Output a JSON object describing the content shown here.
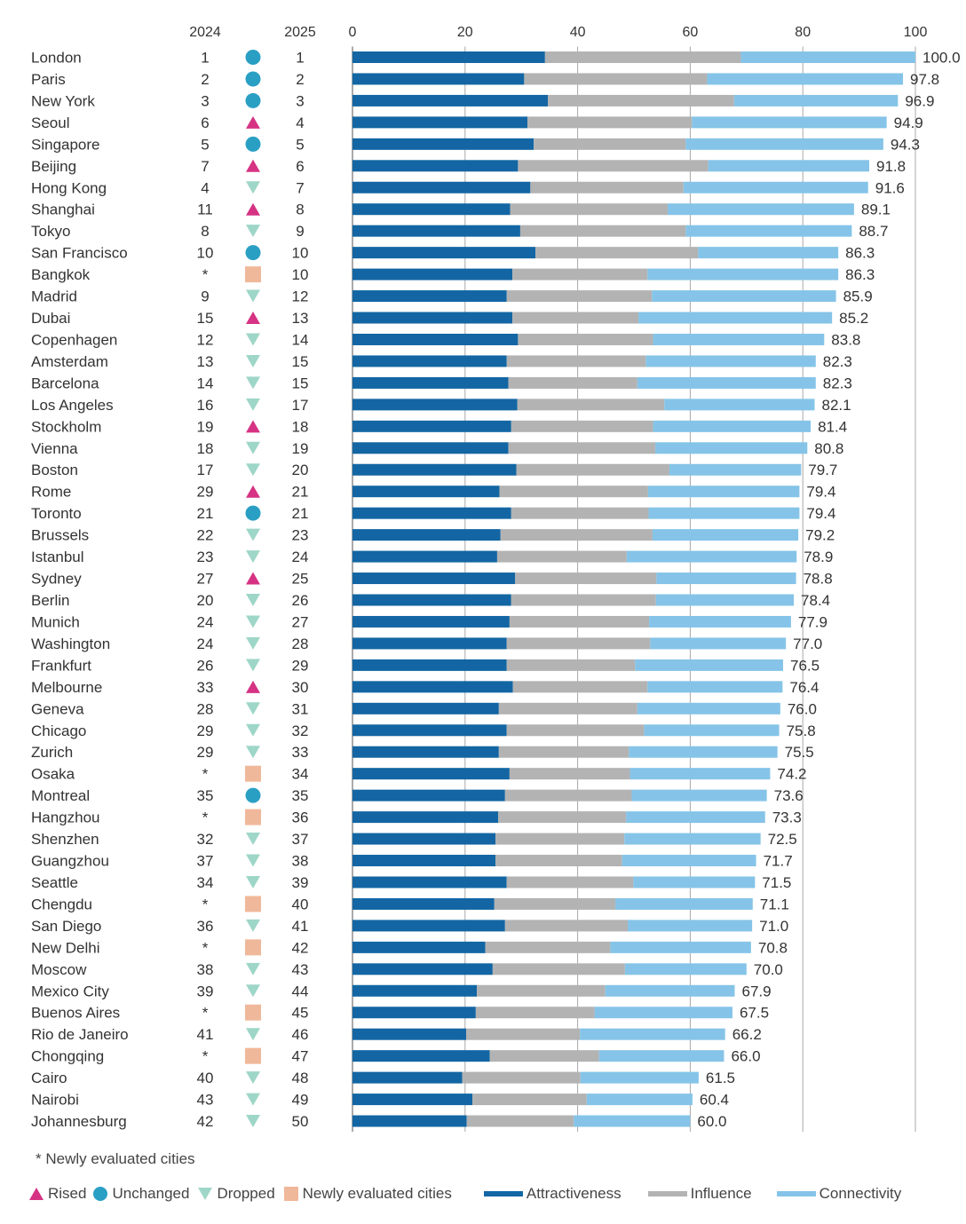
{
  "chart_data": {
    "type": "bar",
    "orientation": "horizontal",
    "stacked": true,
    "column_headers": {
      "rank_2024": "2024",
      "rank_2025": "2025"
    },
    "xlim": [
      0,
      100
    ],
    "xticks": [
      "0",
      "20",
      "40",
      "60",
      "80",
      "100"
    ],
    "grid": true,
    "colors": {
      "attractiveness": "#1366a3",
      "influence": "#b3b3b3",
      "connectivity": "#85c4e8",
      "rised": "#d63384",
      "unchanged": "#2a9fc4",
      "dropped": "#9ed6c7",
      "new": "#f0b89a"
    },
    "series": [
      {
        "key": "attractiveness",
        "name": "Attractiveness"
      },
      {
        "key": "influence",
        "name": "Influence"
      },
      {
        "key": "connectivity",
        "name": "Connectivity"
      }
    ],
    "rows": [
      {
        "city": "London",
        "r2024": "1",
        "status": "unchanged",
        "r2025": "1",
        "attractiveness": 34.2,
        "influence": 34.8,
        "connectivity": 31.0,
        "total": "100.0"
      },
      {
        "city": "Paris",
        "r2024": "2",
        "status": "unchanged",
        "r2025": "2",
        "attractiveness": 30.5,
        "influence": 32.5,
        "connectivity": 34.8,
        "total": "97.8"
      },
      {
        "city": "New York",
        "r2024": "3",
        "status": "unchanged",
        "r2025": "3",
        "attractiveness": 34.7,
        "influence": 33.1,
        "connectivity": 29.1,
        "total": "96.9"
      },
      {
        "city": "Seoul",
        "r2024": "6",
        "status": "rised",
        "r2025": "4",
        "attractiveness": 31.1,
        "influence": 29.2,
        "connectivity": 34.6,
        "total": "94.9"
      },
      {
        "city": "Singapore",
        "r2024": "5",
        "status": "unchanged",
        "r2025": "5",
        "attractiveness": 32.2,
        "influence": 27.0,
        "connectivity": 35.1,
        "total": "94.3"
      },
      {
        "city": "Beijing",
        "r2024": "7",
        "status": "rised",
        "r2025": "6",
        "attractiveness": 29.4,
        "influence": 33.8,
        "connectivity": 28.6,
        "total": "91.8"
      },
      {
        "city": "Hong Kong",
        "r2024": "4",
        "status": "dropped",
        "r2025": "7",
        "attractiveness": 31.6,
        "influence": 27.2,
        "connectivity": 32.8,
        "total": "91.6"
      },
      {
        "city": "Shanghai",
        "r2024": "11",
        "status": "rised",
        "r2025": "8",
        "attractiveness": 28.0,
        "influence": 28.0,
        "connectivity": 33.1,
        "total": "89.1"
      },
      {
        "city": "Tokyo",
        "r2024": "8",
        "status": "dropped",
        "r2025": "9",
        "attractiveness": 29.8,
        "influence": 29.4,
        "connectivity": 29.5,
        "total": "88.7"
      },
      {
        "city": "San Francisco",
        "r2024": "10",
        "status": "unchanged",
        "r2025": "10",
        "attractiveness": 32.5,
        "influence": 28.9,
        "connectivity": 24.9,
        "total": "86.3"
      },
      {
        "city": "Bangkok",
        "r2024": "*",
        "status": "new",
        "r2025": "10",
        "attractiveness": 28.4,
        "influence": 24.0,
        "connectivity": 33.9,
        "total": "86.3"
      },
      {
        "city": "Madrid",
        "r2024": "9",
        "status": "dropped",
        "r2025": "12",
        "attractiveness": 27.4,
        "influence": 25.8,
        "connectivity": 32.7,
        "total": "85.9"
      },
      {
        "city": "Dubai",
        "r2024": "15",
        "status": "rised",
        "r2025": "13",
        "attractiveness": 28.4,
        "influence": 22.4,
        "connectivity": 34.4,
        "total": "85.2"
      },
      {
        "city": "Copenhagen",
        "r2024": "12",
        "status": "dropped",
        "r2025": "14",
        "attractiveness": 29.4,
        "influence": 24.0,
        "connectivity": 30.4,
        "total": "83.8"
      },
      {
        "city": "Amsterdam",
        "r2024": "13",
        "status": "dropped",
        "r2025": "15",
        "attractiveness": 27.4,
        "influence": 24.7,
        "connectivity": 30.2,
        "total": "82.3"
      },
      {
        "city": "Barcelona",
        "r2024": "14",
        "status": "dropped",
        "r2025": "15",
        "attractiveness": 27.7,
        "influence": 22.9,
        "connectivity": 31.7,
        "total": "82.3"
      },
      {
        "city": "Los Angeles",
        "r2024": "16",
        "status": "dropped",
        "r2025": "17",
        "attractiveness": 29.3,
        "influence": 26.1,
        "connectivity": 26.7,
        "total": "82.1"
      },
      {
        "city": "Stockholm",
        "r2024": "19",
        "status": "rised",
        "r2025": "18",
        "attractiveness": 28.2,
        "influence": 25.2,
        "connectivity": 28.0,
        "total": "81.4"
      },
      {
        "city": "Vienna",
        "r2024": "18",
        "status": "dropped",
        "r2025": "19",
        "attractiveness": 27.7,
        "influence": 26.1,
        "connectivity": 27.0,
        "total": "80.8"
      },
      {
        "city": "Boston",
        "r2024": "17",
        "status": "dropped",
        "r2025": "20",
        "attractiveness": 29.1,
        "influence": 27.2,
        "connectivity": 23.4,
        "total": "79.7"
      },
      {
        "city": "Rome",
        "r2024": "29",
        "status": "rised",
        "r2025": "21",
        "attractiveness": 26.1,
        "influence": 26.4,
        "connectivity": 26.9,
        "total": "79.4"
      },
      {
        "city": "Toronto",
        "r2024": "21",
        "status": "unchanged",
        "r2025": "21",
        "attractiveness": 28.2,
        "influence": 24.4,
        "connectivity": 26.8,
        "total": "79.4"
      },
      {
        "city": "Brussels",
        "r2024": "22",
        "status": "dropped",
        "r2025": "23",
        "attractiveness": 26.3,
        "influence": 27.0,
        "connectivity": 25.9,
        "total": "79.2"
      },
      {
        "city": "Istanbul",
        "r2024": "23",
        "status": "dropped",
        "r2025": "24",
        "attractiveness": 25.7,
        "influence": 23.0,
        "connectivity": 30.2,
        "total": "78.9"
      },
      {
        "city": "Sydney",
        "r2024": "27",
        "status": "rised",
        "r2025": "25",
        "attractiveness": 28.9,
        "influence": 25.1,
        "connectivity": 24.8,
        "total": "78.8"
      },
      {
        "city": "Berlin",
        "r2024": "20",
        "status": "dropped",
        "r2025": "26",
        "attractiveness": 28.2,
        "influence": 25.7,
        "connectivity": 24.5,
        "total": "78.4"
      },
      {
        "city": "Munich",
        "r2024": "24",
        "status": "dropped",
        "r2025": "27",
        "attractiveness": 27.9,
        "influence": 24.8,
        "connectivity": 25.2,
        "total": "77.9"
      },
      {
        "city": "Washington",
        "r2024": "24",
        "status": "dropped",
        "r2025": "28",
        "attractiveness": 27.4,
        "influence": 25.5,
        "connectivity": 24.1,
        "total": "77.0"
      },
      {
        "city": "Frankfurt",
        "r2024": "26",
        "status": "dropped",
        "r2025": "29",
        "attractiveness": 27.4,
        "influence": 22.8,
        "connectivity": 26.3,
        "total": "76.5"
      },
      {
        "city": "Melbourne",
        "r2024": "33",
        "status": "rised",
        "r2025": "30",
        "attractiveness": 28.5,
        "influence": 23.9,
        "connectivity": 24.0,
        "total": "76.4"
      },
      {
        "city": "Geneva",
        "r2024": "28",
        "status": "dropped",
        "r2025": "31",
        "attractiveness": 26.0,
        "influence": 24.6,
        "connectivity": 25.4,
        "total": "76.0"
      },
      {
        "city": "Chicago",
        "r2024": "29",
        "status": "dropped",
        "r2025": "32",
        "attractiveness": 27.4,
        "influence": 24.4,
        "connectivity": 24.0,
        "total": "75.8"
      },
      {
        "city": "Zurich",
        "r2024": "29",
        "status": "dropped",
        "r2025": "33",
        "attractiveness": 26.0,
        "influence": 23.1,
        "connectivity": 26.4,
        "total": "75.5"
      },
      {
        "city": "Osaka",
        "r2024": "*",
        "status": "new",
        "r2025": "34",
        "attractiveness": 27.9,
        "influence": 21.4,
        "connectivity": 24.9,
        "total": "74.2"
      },
      {
        "city": "Montreal",
        "r2024": "35",
        "status": "unchanged",
        "r2025": "35",
        "attractiveness": 27.1,
        "influence": 22.5,
        "connectivity": 24.0,
        "total": "73.6"
      },
      {
        "city": "Hangzhou",
        "r2024": "*",
        "status": "new",
        "r2025": "36",
        "attractiveness": 25.9,
        "influence": 22.7,
        "connectivity": 24.7,
        "total": "73.3"
      },
      {
        "city": "Shenzhen",
        "r2024": "32",
        "status": "dropped",
        "r2025": "37",
        "attractiveness": 25.4,
        "influence": 22.9,
        "connectivity": 24.2,
        "total": "72.5"
      },
      {
        "city": "Guangzhou",
        "r2024": "37",
        "status": "dropped",
        "r2025": "38",
        "attractiveness": 25.4,
        "influence": 22.5,
        "connectivity": 23.8,
        "total": "71.7"
      },
      {
        "city": "Seattle",
        "r2024": "34",
        "status": "dropped",
        "r2025": "39",
        "attractiveness": 27.4,
        "influence": 22.5,
        "connectivity": 21.6,
        "total": "71.5"
      },
      {
        "city": "Chengdu",
        "r2024": "*",
        "status": "new",
        "r2025": "40",
        "attractiveness": 25.2,
        "influence": 21.5,
        "connectivity": 24.4,
        "total": "71.1"
      },
      {
        "city": "San Diego",
        "r2024": "36",
        "status": "dropped",
        "r2025": "41",
        "attractiveness": 27.1,
        "influence": 21.8,
        "connectivity": 22.1,
        "total": "71.0"
      },
      {
        "city": "New Delhi",
        "r2024": "*",
        "status": "new",
        "r2025": "42",
        "attractiveness": 23.6,
        "influence": 22.2,
        "connectivity": 25.0,
        "total": "70.8"
      },
      {
        "city": "Moscow",
        "r2024": "38",
        "status": "dropped",
        "r2025": "43",
        "attractiveness": 24.9,
        "influence": 23.5,
        "connectivity": 21.6,
        "total": "70.0"
      },
      {
        "city": "Mexico City",
        "r2024": "39",
        "status": "dropped",
        "r2025": "44",
        "attractiveness": 22.1,
        "influence": 22.8,
        "connectivity": 23.0,
        "total": "67.9"
      },
      {
        "city": "Buenos Aires",
        "r2024": "*",
        "status": "new",
        "r2025": "45",
        "attractiveness": 21.9,
        "influence": 21.1,
        "connectivity": 24.5,
        "total": "67.5"
      },
      {
        "city": "Rio de Janeiro",
        "r2024": "41",
        "status": "dropped",
        "r2025": "46",
        "attractiveness": 20.2,
        "influence": 20.2,
        "connectivity": 25.8,
        "total": "66.2"
      },
      {
        "city": "Chongqing",
        "r2024": "*",
        "status": "new",
        "r2025": "47",
        "attractiveness": 24.4,
        "influence": 19.4,
        "connectivity": 22.2,
        "total": "66.0"
      },
      {
        "city": "Cairo",
        "r2024": "40",
        "status": "dropped",
        "r2025": "48",
        "attractiveness": 19.5,
        "influence": 21.0,
        "connectivity": 21.0,
        "total": "61.5"
      },
      {
        "city": "Nairobi",
        "r2024": "43",
        "status": "dropped",
        "r2025": "49",
        "attractiveness": 21.3,
        "influence": 20.3,
        "connectivity": 18.8,
        "total": "60.4"
      },
      {
        "city": "Johannesburg",
        "r2024": "42",
        "status": "dropped",
        "r2025": "50",
        "attractiveness": 20.3,
        "influence": 19.0,
        "connectivity": 20.7,
        "total": "60.0"
      }
    ],
    "footnote": "*  Newly evaluated cities",
    "status_legend": [
      {
        "key": "rised",
        "label": "Rised"
      },
      {
        "key": "unchanged",
        "label": "Unchanged"
      },
      {
        "key": "dropped",
        "label": "Dropped"
      },
      {
        "key": "new",
        "label": "Newly evaluated cities"
      }
    ]
  }
}
